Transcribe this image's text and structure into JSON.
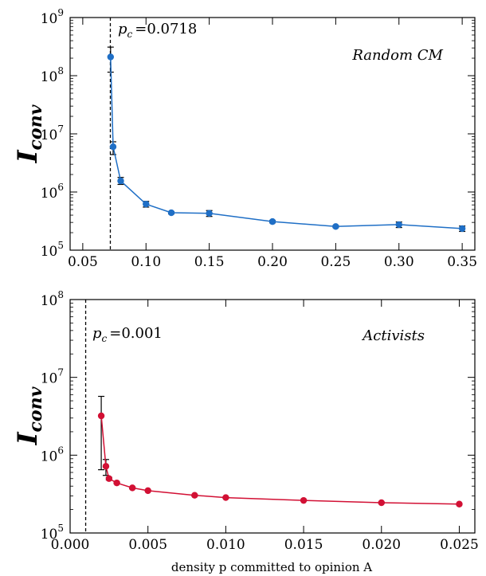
{
  "figure": {
    "xlabel": "density p committed to opinion A"
  },
  "chart_data": [
    {
      "type": "line",
      "title": "",
      "ylabel_main": "I",
      "ylabel_sub": "conv",
      "xlabel": "",
      "annotation": "Random CM",
      "pc_label": "p",
      "pc_sub": "c",
      "pc_value_text": "=0.0718",
      "pc_value": 0.0718,
      "x_scale": "linear",
      "y_scale": "log",
      "xlim": [
        0.04,
        0.36
      ],
      "ylim_exp": [
        5,
        9
      ],
      "xticks": [
        0.05,
        0.1,
        0.15,
        0.2,
        0.25,
        0.3,
        0.35
      ],
      "xtick_labels": [
        "0.05",
        "0.10",
        "0.15",
        "0.20",
        "0.25",
        "0.30",
        "0.35"
      ],
      "ytick_exponents": [
        "5",
        "6",
        "7",
        "8",
        "9"
      ],
      "ytick_base": "10",
      "color": "#1f6fc6",
      "series": [
        {
          "x": [
            0.072,
            0.074,
            0.08,
            0.1,
            0.12,
            0.15,
            0.2,
            0.25,
            0.3,
            0.35
          ],
          "y": [
            210000000,
            6000000,
            1550000,
            620000,
            440000,
            430000,
            310000,
            255000,
            275000,
            235000
          ],
          "err_low": [
            115000000,
            4400000,
            1350000,
            550000,
            420000,
            380000,
            295000,
            245000,
            245000,
            210000
          ],
          "err_high": [
            310000000,
            7300000,
            1780000,
            690000,
            460000,
            480000,
            325000,
            265000,
            305000,
            260000
          ]
        }
      ]
    },
    {
      "type": "line",
      "title": "",
      "ylabel_main": "I",
      "ylabel_sub": "conv",
      "xlabel": "density p committed to opinion A",
      "annotation": "Activists",
      "pc_label": "p",
      "pc_sub": "c",
      "pc_value_text": "=0.001",
      "pc_value": 0.001,
      "x_scale": "linear",
      "y_scale": "log",
      "xlim": [
        0.0,
        0.026
      ],
      "ylim_exp": [
        5,
        8
      ],
      "xticks": [
        0.0,
        0.005,
        0.01,
        0.015,
        0.02,
        0.025
      ],
      "xtick_labels": [
        "0.000",
        "0.005",
        "0.010",
        "0.015",
        "0.020",
        "0.025"
      ],
      "ytick_exponents": [
        "5",
        "6",
        "7",
        "8"
      ],
      "ytick_base": "10",
      "color": "#d21034",
      "series": [
        {
          "x": [
            0.002,
            0.0023,
            0.0025,
            0.003,
            0.004,
            0.005,
            0.008,
            0.01,
            0.015,
            0.02,
            0.025
          ],
          "y": [
            3200000,
            720000,
            500000,
            440000,
            380000,
            350000,
            305000,
            285000,
            262000,
            245000,
            235000
          ],
          "err_low": [
            650000,
            550000,
            480000,
            430000,
            370000,
            345000,
            300000,
            280000,
            258000,
            241000,
            231000
          ],
          "err_high": [
            5700000,
            880000,
            520000,
            450000,
            390000,
            355000,
            310000,
            290000,
            266000,
            249000,
            239000
          ]
        }
      ]
    }
  ]
}
